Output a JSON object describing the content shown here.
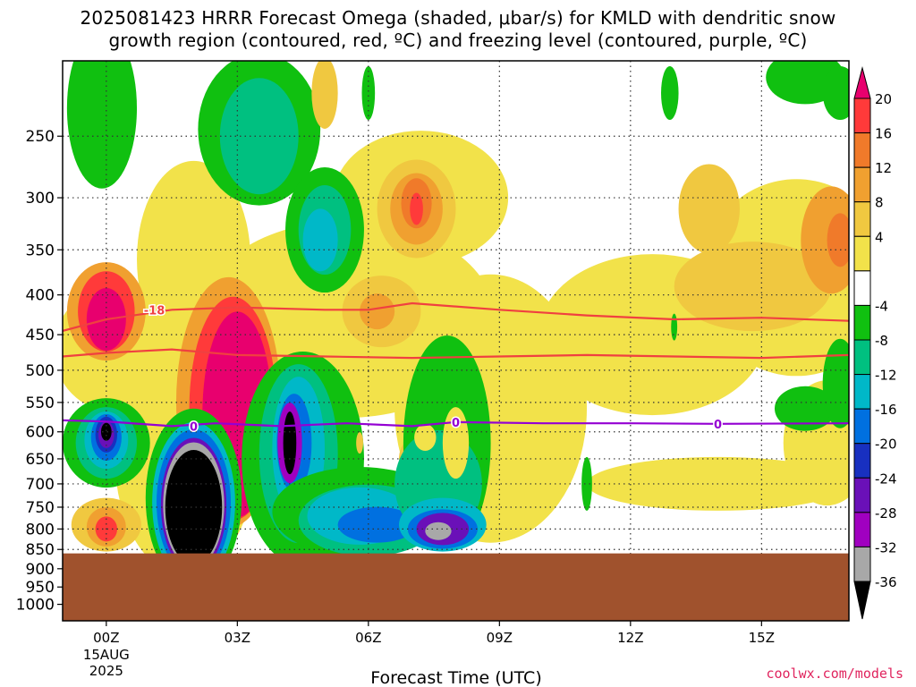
{
  "chart_data": {
    "type": "heatmap",
    "title_line1": "2025081423 HRRR Forecast Omega (shaded, μbar/s) for KMLD with dendritic snow",
    "title_line2": "growth region (contoured, red, ºC) and freezing level (contoured, purple, ºC)",
    "xlabel": "Forecast Time (UTC)",
    "x_ticks": [
      "00Z",
      "03Z",
      "06Z",
      "09Z",
      "12Z",
      "15Z"
    ],
    "x_tick_hours": [
      0,
      3,
      6,
      9,
      12,
      15
    ],
    "x_date_label": [
      "15AUG",
      "2025"
    ],
    "xlim_hours": [
      -1,
      17
    ],
    "ylabel": "",
    "y_ticks": [
      250,
      300,
      350,
      400,
      450,
      500,
      550,
      600,
      650,
      700,
      750,
      800,
      850,
      900,
      950,
      1000
    ],
    "ylim_hpa": [
      1050,
      200
    ],
    "ground_level_hpa": 860,
    "colorbar": {
      "labels": [
        20,
        16,
        12,
        8,
        4,
        -4,
        -8,
        -12,
        -16,
        -20,
        -24,
        -28,
        -32,
        -36
      ],
      "colors": [
        "#e8006e",
        "#ff3a3a",
        "#f07a2a",
        "#f0a030",
        "#f0c840",
        "#f2e24a",
        "#ffffff",
        "#10c010",
        "#00c080",
        "#00b8c8",
        "#0070e0",
        "#1830c0",
        "#6a10b8",
        "#a000c0",
        "#a8a8a8",
        "#000000"
      ]
    },
    "contour_labels": {
      "red": "-18",
      "purple": "0"
    },
    "credit": "coolwx.com/models"
  },
  "colors": {
    "ground": "#a0522d",
    "red_contour": "#f04040",
    "purple_contour": "#9400d3"
  }
}
